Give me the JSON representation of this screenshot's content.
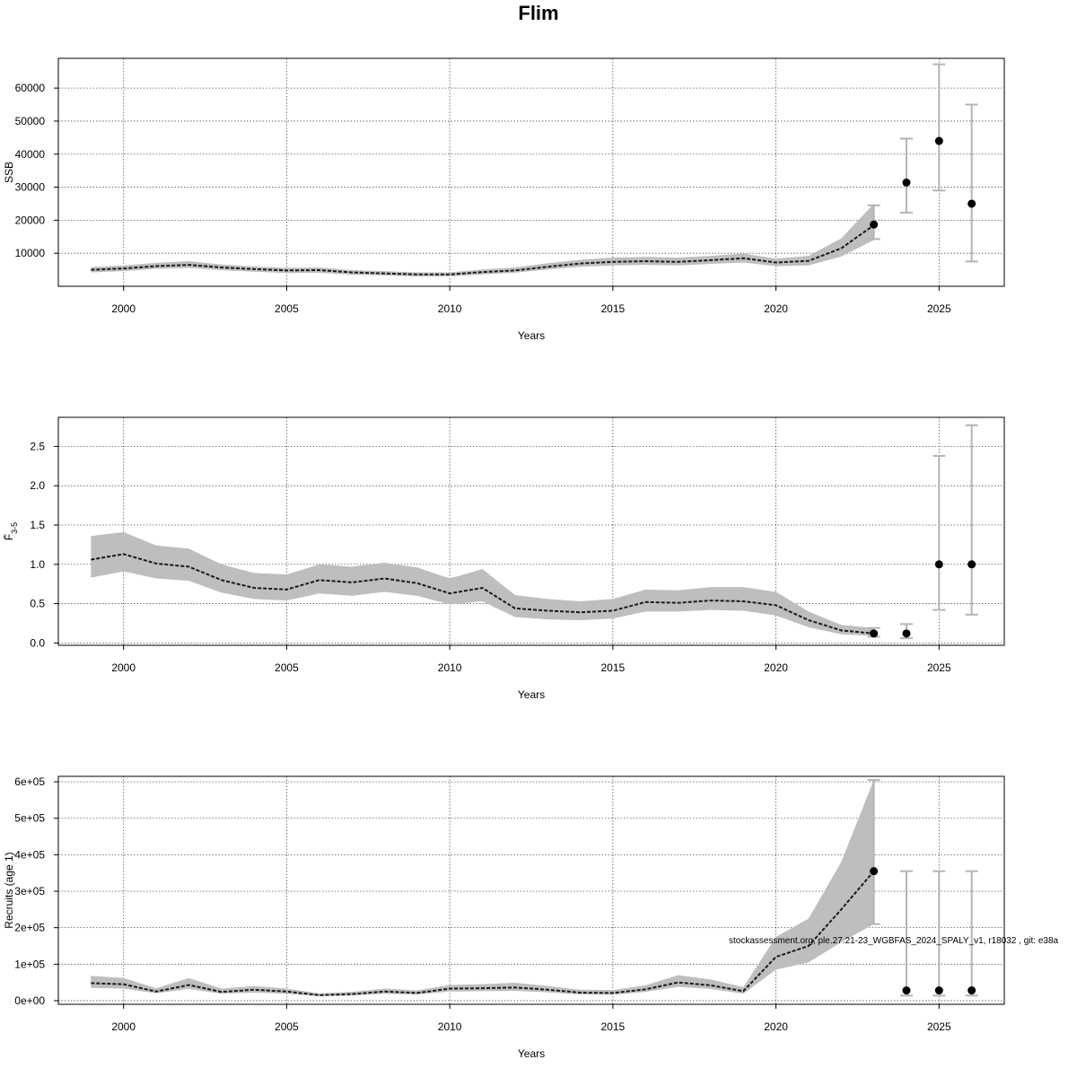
{
  "figure": {
    "title": "Flim",
    "footnote": "stockassessment.org, ple.27.21-23_WGBFAS_2024_SPALY_v1, r18032 , git: e38a"
  },
  "colors": {
    "band": "#bebebe",
    "line": "#1a1a1a",
    "point": "#000000",
    "errorbar": "#b4b4b4",
    "grid": "#555555"
  },
  "chart_data": [
    {
      "type": "line",
      "title": "",
      "xlabel": "Years",
      "ylabel": "SSB",
      "xlim": [
        1998,
        2027
      ],
      "ylim": [
        0,
        69000
      ],
      "xticks": [
        2000,
        2005,
        2010,
        2015,
        2020,
        2025
      ],
      "xtick_labels": [
        "2000",
        "2005",
        "2010",
        "2015",
        "2020",
        "2025"
      ],
      "yticks": [
        10000,
        20000,
        30000,
        40000,
        50000,
        60000
      ],
      "ytick_labels": [
        "10000",
        "20000",
        "30000",
        "40000",
        "50000",
        "60000"
      ],
      "grid": true,
      "series": [
        {
          "x": [
            1999,
            2000,
            2001,
            2002,
            2003,
            2004,
            2005,
            2006,
            2007,
            2008,
            2009,
            2010,
            2011,
            2012,
            2013,
            2014,
            2015,
            2016,
            2017,
            2018,
            2019,
            2020,
            2021,
            2022,
            2023
          ],
          "estimate": [
            5000,
            5400,
            6100,
            6500,
            5700,
            5200,
            4800,
            4900,
            4200,
            3900,
            3600,
            3600,
            4300,
            4800,
            5900,
            6900,
            7400,
            7600,
            7400,
            7900,
            8500,
            7200,
            7700,
            11500,
            18500
          ],
          "lower": [
            4200,
            4600,
            5300,
            5600,
            4900,
            4400,
            4000,
            4100,
            3500,
            3300,
            3000,
            3000,
            3600,
            4100,
            5100,
            5900,
            6300,
            6500,
            6300,
            6800,
            7200,
            6100,
            6300,
            9000,
            14000
          ],
          "upper": [
            5800,
            6300,
            7100,
            7600,
            6600,
            6000,
            5600,
            5700,
            4900,
            4600,
            4200,
            4200,
            5100,
            5700,
            7000,
            8000,
            8700,
            8900,
            8700,
            9200,
            9900,
            8400,
            9200,
            14500,
            25000
          ]
        }
      ],
      "projections": [
        {
          "x": 2023,
          "value": 18700,
          "lower": 14300,
          "upper": 24500
        },
        {
          "x": 2024,
          "value": 31400,
          "lower": 22300,
          "upper": 44700
        },
        {
          "x": 2025,
          "value": 44000,
          "lower": 29000,
          "upper": 67200
        },
        {
          "x": 2026,
          "value": 25000,
          "lower": 7500,
          "upper": 55000
        }
      ]
    },
    {
      "type": "line",
      "title": "",
      "xlabel": "Years",
      "ylabel": "F̄",
      "ylabel_sub": "3-5",
      "xlim": [
        1998,
        2027
      ],
      "ylim": [
        -0.03,
        2.87
      ],
      "xticks": [
        2000,
        2005,
        2010,
        2015,
        2020,
        2025
      ],
      "xtick_labels": [
        "2000",
        "2005",
        "2010",
        "2015",
        "2020",
        "2025"
      ],
      "yticks": [
        0,
        0.5,
        1.0,
        1.5,
        2.0,
        2.5
      ],
      "ytick_labels": [
        "0.0",
        "0.5",
        "1.0",
        "1.5",
        "2.0",
        "2.5"
      ],
      "grid": true,
      "series": [
        {
          "x": [
            1999,
            2000,
            2001,
            2002,
            2003,
            2004,
            2005,
            2006,
            2007,
            2008,
            2009,
            2010,
            2011,
            2012,
            2013,
            2014,
            2015,
            2016,
            2017,
            2018,
            2019,
            2020,
            2021,
            2022,
            2023
          ],
          "estimate": [
            1.06,
            1.13,
            1.01,
            0.97,
            0.8,
            0.7,
            0.68,
            0.8,
            0.77,
            0.82,
            0.76,
            0.63,
            0.7,
            0.44,
            0.41,
            0.39,
            0.41,
            0.52,
            0.51,
            0.54,
            0.53,
            0.48,
            0.29,
            0.16,
            0.12
          ],
          "lower": [
            0.83,
            0.91,
            0.82,
            0.79,
            0.64,
            0.56,
            0.54,
            0.63,
            0.6,
            0.65,
            0.6,
            0.49,
            0.53,
            0.33,
            0.3,
            0.29,
            0.31,
            0.4,
            0.4,
            0.42,
            0.41,
            0.35,
            0.2,
            0.11,
            0.09
          ],
          "upper": [
            1.36,
            1.41,
            1.24,
            1.2,
            1.0,
            0.89,
            0.87,
            1.0,
            0.97,
            1.02,
            0.96,
            0.82,
            0.94,
            0.61,
            0.56,
            0.53,
            0.56,
            0.68,
            0.67,
            0.71,
            0.71,
            0.65,
            0.4,
            0.23,
            0.19
          ]
        }
      ],
      "projections": [
        {
          "x": 2023,
          "value": 0.12,
          "lower": 0.08,
          "upper": 0.19
        },
        {
          "x": 2024,
          "value": 0.12,
          "lower": 0.06,
          "upper": 0.24
        },
        {
          "x": 2025,
          "value": 1.0,
          "lower": 0.42,
          "upper": 2.38
        },
        {
          "x": 2026,
          "value": 1.0,
          "lower": 0.36,
          "upper": 2.77
        }
      ]
    },
    {
      "type": "line",
      "title": "",
      "xlabel": "Years",
      "ylabel": "Recruits (age 1)",
      "xlim": [
        1998,
        2027
      ],
      "ylim": [
        -10000,
        615000
      ],
      "xticks": [
        2000,
        2005,
        2010,
        2015,
        2020,
        2025
      ],
      "xtick_labels": [
        "2000",
        "2005",
        "2010",
        "2015",
        "2020",
        "2025"
      ],
      "yticks": [
        0,
        100000,
        200000,
        300000,
        400000,
        500000,
        600000
      ],
      "ytick_labels": [
        "0e+00",
        "1e+05",
        "2e+05",
        "3e+05",
        "4e+05",
        "5e+05",
        "6e+05"
      ],
      "grid": true,
      "series": [
        {
          "x": [
            1999,
            2000,
            2001,
            2002,
            2003,
            2004,
            2005,
            2006,
            2007,
            2008,
            2009,
            2010,
            2011,
            2012,
            2013,
            2014,
            2015,
            2016,
            2017,
            2018,
            2019,
            2020,
            2021,
            2022,
            2023
          ],
          "estimate": [
            48000,
            45000,
            25000,
            43000,
            24000,
            30000,
            25000,
            15000,
            18000,
            25000,
            21000,
            33000,
            34000,
            36000,
            30000,
            22000,
            21000,
            31000,
            50000,
            42000,
            26000,
            120000,
            150000,
            250000,
            355000
          ],
          "lower": [
            35000,
            33000,
            20000,
            32000,
            19000,
            22000,
            19000,
            12000,
            14000,
            19000,
            17000,
            25000,
            26000,
            27000,
            23000,
            17000,
            16000,
            24000,
            38000,
            32000,
            19000,
            85000,
            105000,
            160000,
            210000
          ],
          "upper": [
            68000,
            62000,
            34000,
            62000,
            33000,
            40000,
            33000,
            20000,
            24000,
            33000,
            28000,
            43000,
            45000,
            49000,
            40000,
            30000,
            29000,
            42000,
            70000,
            58000,
            37000,
            175000,
            225000,
            380000,
            605000
          ]
        }
      ],
      "projections": [
        {
          "x": 2023,
          "value": 355000,
          "lower": 210000,
          "upper": 605000
        },
        {
          "x": 2024,
          "value": 28000,
          "lower": 14000,
          "upper": 355000
        },
        {
          "x": 2025,
          "value": 28000,
          "lower": 14000,
          "upper": 355000
        },
        {
          "x": 2026,
          "value": 28000,
          "lower": 14000,
          "upper": 355000
        }
      ]
    }
  ]
}
